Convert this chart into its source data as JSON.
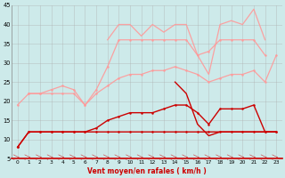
{
  "x": [
    0,
    1,
    2,
    3,
    4,
    5,
    6,
    7,
    8,
    9,
    10,
    11,
    12,
    13,
    14,
    15,
    16,
    17,
    18,
    19,
    20,
    21,
    22,
    23
  ],
  "line1_dark_bottom": [
    8,
    12,
    12,
    12,
    12,
    12,
    12,
    12,
    12,
    12,
    12,
    12,
    12,
    12,
    12,
    12,
    12,
    12,
    12,
    12,
    12,
    12,
    12,
    12
  ],
  "line2_dark_rising": [
    8,
    12,
    12,
    12,
    12,
    12,
    12,
    13,
    15,
    16,
    17,
    17,
    17,
    18,
    19,
    19,
    17,
    14,
    18,
    18,
    18,
    19,
    12,
    12
  ],
  "line3_dark_spike": [
    null,
    null,
    null,
    null,
    null,
    null,
    null,
    null,
    null,
    null,
    null,
    null,
    null,
    null,
    25,
    22,
    14,
    11,
    12,
    12,
    12,
    12,
    12,
    12
  ],
  "line4_light_lower": [
    19,
    22,
    22,
    22,
    22,
    22,
    19,
    22,
    24,
    26,
    27,
    27,
    28,
    28,
    29,
    28,
    27,
    25,
    26,
    27,
    27,
    28,
    25,
    32
  ],
  "line5_light_upper": [
    null,
    22,
    22,
    23,
    24,
    23,
    19,
    23,
    29,
    36,
    36,
    36,
    36,
    36,
    36,
    36,
    32,
    33,
    36,
    36,
    36,
    36,
    32,
    null
  ],
  "line6_light_jagged": [
    null,
    null,
    null,
    null,
    null,
    null,
    null,
    null,
    36,
    40,
    40,
    37,
    40,
    38,
    40,
    40,
    32,
    27,
    40,
    41,
    40,
    44,
    36,
    null
  ],
  "bg_color": "#cdeaea",
  "grid_color": "#aaaaaa",
  "color_dark": "#cc0000",
  "color_light": "#ff9999",
  "xlabel": "Vent moyen/en rafales ( km/h )",
  "ylim": [
    5,
    45
  ],
  "xlim": [
    -0.5,
    23.5
  ],
  "yticks": [
    5,
    10,
    15,
    20,
    25,
    30,
    35,
    40,
    45
  ],
  "xticks": [
    0,
    1,
    2,
    3,
    4,
    5,
    6,
    7,
    8,
    9,
    10,
    11,
    12,
    13,
    14,
    15,
    16,
    17,
    18,
    19,
    20,
    21,
    22,
    23
  ]
}
